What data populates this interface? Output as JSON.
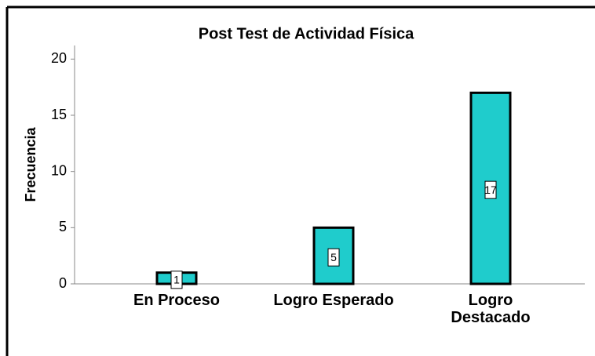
{
  "chart_data": {
    "type": "bar",
    "title": "Post Test de Actividad Física",
    "y_label": "Frecuencia",
    "categories": [
      "En Proceso",
      "Logro Esperado",
      "Logro Destacado"
    ],
    "values": [
      1,
      5,
      17
    ],
    "color": "#1fcccc",
    "ylim": [
      0,
      21
    ],
    "yticks": [
      0,
      5,
      10,
      15,
      20
    ]
  }
}
